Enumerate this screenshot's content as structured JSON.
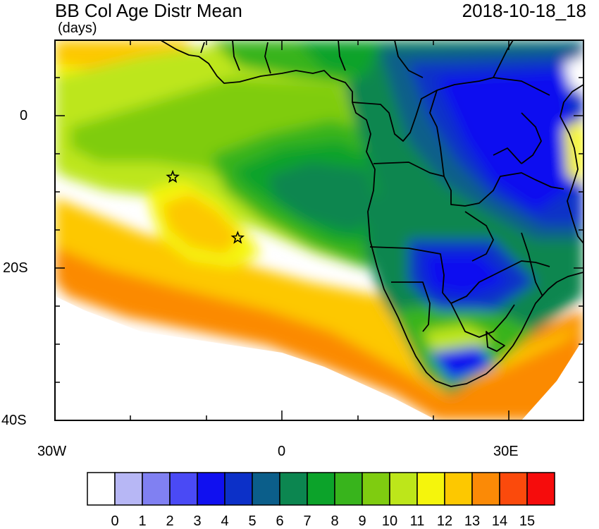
{
  "header": {
    "title": "BB Col Age Distr Mean",
    "units": "(days)",
    "datetime": "2018-10-18_18"
  },
  "axes": {
    "y_ticks": [
      "0",
      "20S",
      "40S"
    ],
    "x_ticks": [
      "30W",
      "0",
      "30E"
    ]
  },
  "colorbar": {
    "labels": [
      "0",
      "1",
      "2",
      "3",
      "4",
      "5",
      "6",
      "7",
      "8",
      "9",
      "10",
      "11",
      "12",
      "13",
      "14",
      "15"
    ],
    "colors": [
      "#ffffff",
      "#b7b7f5",
      "#8080f2",
      "#4a4af5",
      "#1010f0",
      "#0c30c8",
      "#0b5e8a",
      "#0c8650",
      "#0ca32a",
      "#38b41c",
      "#7fcc10",
      "#bde61a",
      "#f5f50c",
      "#fdc800",
      "#fb8a06",
      "#fb4a0c",
      "#f60c0c"
    ]
  },
  "markers": [
    {
      "name": "star-marker",
      "lon": -14.4,
      "lat": -8.0
    },
    {
      "name": "star-marker",
      "lon": -5.8,
      "lat": -16.0
    }
  ]
}
